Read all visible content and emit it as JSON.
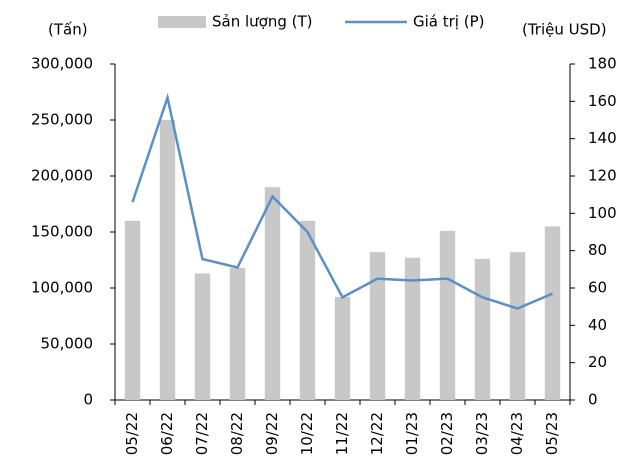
{
  "chart_data": {
    "type": "bar_line",
    "y_label": "(Tấn)",
    "y2_label": "(Triệu USD)",
    "categories": [
      "05/22",
      "06/22",
      "07/22",
      "08/22",
      "09/22",
      "10/22",
      "11/22",
      "12/22",
      "01/23",
      "02/23",
      "03/23",
      "04/23",
      "05/23"
    ],
    "series": [
      {
        "name": "Sản lượng (T)",
        "color": "#c8c8c8",
        "type": "bar",
        "values": [
          160000,
          250000,
          113000,
          118000,
          190000,
          160000,
          92000,
          132000,
          127000,
          151000,
          126000,
          132000,
          155000
        ]
      },
      {
        "name": "Giá trị (P)",
        "color": "#5b8fc7",
        "type": "line",
        "axis": "y2",
        "values": [
          106,
          162,
          75.5,
          71,
          109,
          90,
          55,
          65,
          64,
          65,
          55,
          49,
          57
        ]
      }
    ],
    "ylim": [
      0,
      300000
    ],
    "yticks": [
      0,
      {
        "value": 50000,
        "label": "50,000"
      },
      {
        "value": 100000,
        "label": "100,000"
      },
      {
        "value": 150000,
        "label": "150,000"
      },
      {
        "value": 200000,
        "label": "200,000"
      },
      {
        "value": 250000,
        "label": "250,000"
      },
      {
        "value": 300000,
        "label": "300,000"
      }
    ],
    "y2lim": [
      0,
      180
    ],
    "y2ticks": [
      0,
      20,
      40,
      60,
      80,
      100,
      120,
      140,
      160,
      180
    ],
    "grid": false,
    "legend": "top"
  }
}
